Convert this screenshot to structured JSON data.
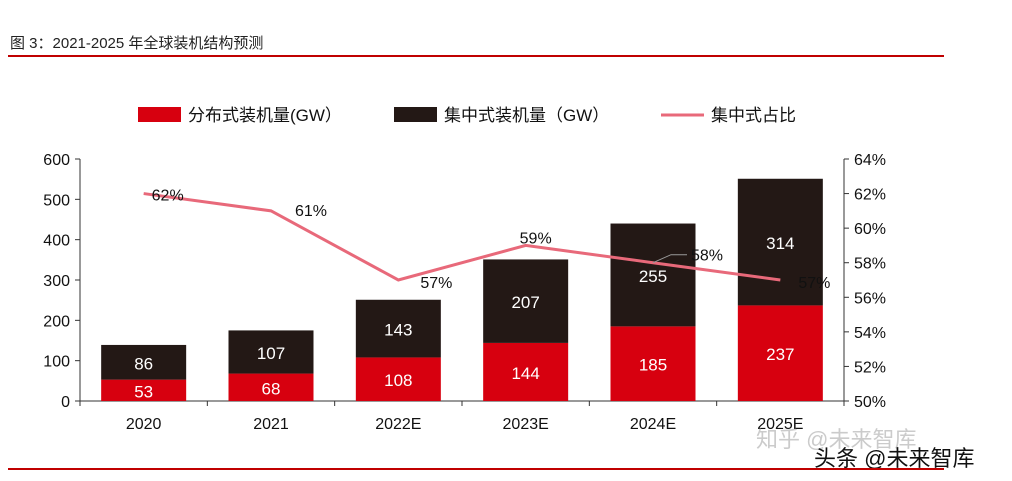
{
  "figure_title": "图 3：2021-2025 年全球装机结构预测",
  "watermark_1": "知乎 @未来智库",
  "watermark_2": "头条 @未来智库",
  "chart_data": {
    "type": "bar",
    "stacked": true,
    "categories": [
      "2020",
      "2021",
      "2022E",
      "2023E",
      "2024E",
      "2025E"
    ],
    "series": [
      {
        "name": "分布式装机量(GW）",
        "values": [
          53,
          68,
          108,
          144,
          185,
          237
        ],
        "color": "#d7000f",
        "axis": "left"
      },
      {
        "name": "集中式装机量（GW）",
        "values": [
          86,
          107,
          143,
          207,
          255,
          314
        ],
        "color": "#231815",
        "axis": "left"
      },
      {
        "name": "集中式占比",
        "type": "line",
        "values": [
          62,
          61,
          57,
          59,
          58,
          57
        ],
        "labels": [
          "62%",
          "61%",
          "57%",
          "59%",
          "58%",
          "57%"
        ],
        "color": "#e8697a",
        "axis": "right"
      }
    ],
    "y_left": {
      "range": [
        0,
        600
      ],
      "ticks": [
        "0",
        "100",
        "200",
        "300",
        "400",
        "500",
        "600"
      ]
    },
    "y_right": {
      "range": [
        50,
        64
      ],
      "ticks": [
        "50%",
        "52%",
        "54%",
        "56%",
        "58%",
        "60%",
        "62%",
        "64%"
      ]
    },
    "legend_position": "top",
    "grid": false
  }
}
